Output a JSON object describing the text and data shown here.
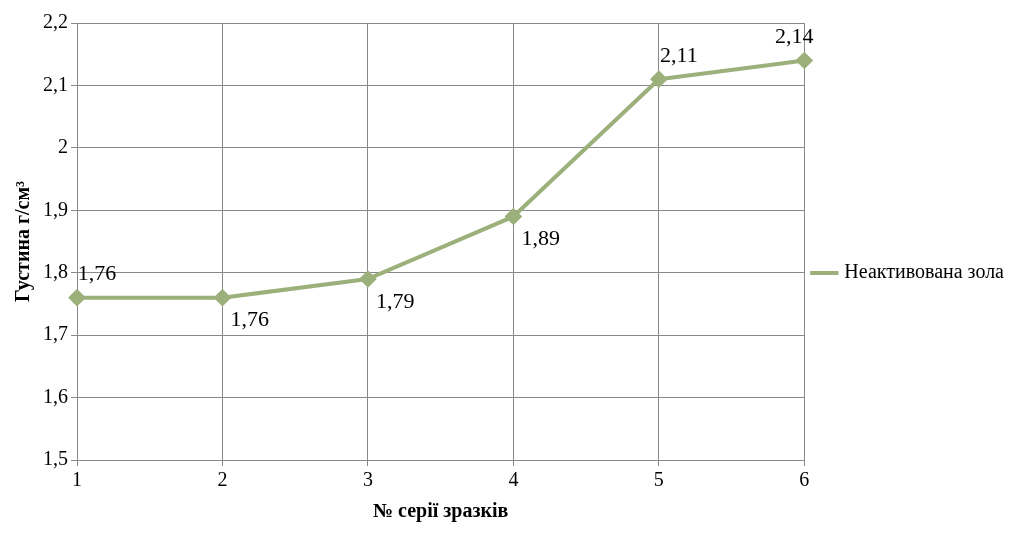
{
  "chart_data": {
    "type": "line",
    "xlabel": "№ серії зразків",
    "ylabel": "Густина г/см³",
    "categories": [
      "1",
      "2",
      "3",
      "4",
      "5",
      "6"
    ],
    "series": [
      {
        "name": "Неактивована зола",
        "color": "#9bb07a",
        "values": [
          1.76,
          1.76,
          1.79,
          1.89,
          2.11,
          2.14
        ],
        "value_labels": [
          "1,76",
          "1,76",
          "1,79",
          "1,89",
          "2,11",
          "2,14"
        ]
      }
    ],
    "ylim": [
      1.5,
      2.2
    ],
    "yticks": [
      {
        "value": 1.5,
        "label": "1,5"
      },
      {
        "value": 1.6,
        "label": "1,6"
      },
      {
        "value": 1.7,
        "label": "1,7"
      },
      {
        "value": 1.8,
        "label": "1,8"
      },
      {
        "value": 1.9,
        "label": "1,9"
      },
      2,
      {
        "value": 2.1,
        "label": "2,1"
      },
      {
        "value": 2.2,
        "label": "2,2"
      }
    ],
    "grid": true,
    "legend": "right",
    "marker": "diamond",
    "line_style": "solid"
  }
}
